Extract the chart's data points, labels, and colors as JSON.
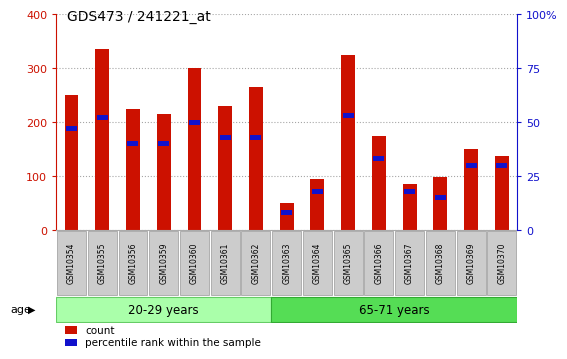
{
  "title": "GDS473 / 241221_at",
  "samples": [
    "GSM10354",
    "GSM10355",
    "GSM10356",
    "GSM10359",
    "GSM10360",
    "GSM10361",
    "GSM10362",
    "GSM10363",
    "GSM10364",
    "GSM10365",
    "GSM10366",
    "GSM10367",
    "GSM10368",
    "GSM10369",
    "GSM10370"
  ],
  "counts": [
    250,
    335,
    225,
    215,
    300,
    230,
    265,
    50,
    95,
    325,
    175,
    85,
    98,
    150,
    138
  ],
  "percentiles": [
    47,
    52,
    40,
    40,
    50,
    43,
    43,
    8,
    18,
    53,
    33,
    18,
    15,
    30,
    30
  ],
  "groups": [
    {
      "label": "20-29 years",
      "start": 0,
      "end": 7,
      "color": "#aaffaa",
      "edge": "#66cc66"
    },
    {
      "label": "65-71 years",
      "start": 7,
      "end": 15,
      "color": "#55dd55",
      "edge": "#33aa33"
    }
  ],
  "bar_color": "#cc1100",
  "percentile_color": "#1111cc",
  "left_ylim": [
    0,
    400
  ],
  "right_ylim": [
    0,
    100
  ],
  "left_yticks": [
    0,
    100,
    200,
    300,
    400
  ],
  "right_yticks": [
    0,
    25,
    50,
    75,
    100
  ],
  "right_yticklabels": [
    "0",
    "25",
    "50",
    "75",
    "100%"
  ],
  "tick_label_color_left": "#cc1100",
  "tick_label_color_right": "#1111cc",
  "legend_count_label": "count",
  "legend_percentile_label": "percentile rank within the sample",
  "age_label": "age",
  "bg_plot": "#ffffff",
  "bg_xtick": "#cccccc",
  "bar_width": 0.45
}
